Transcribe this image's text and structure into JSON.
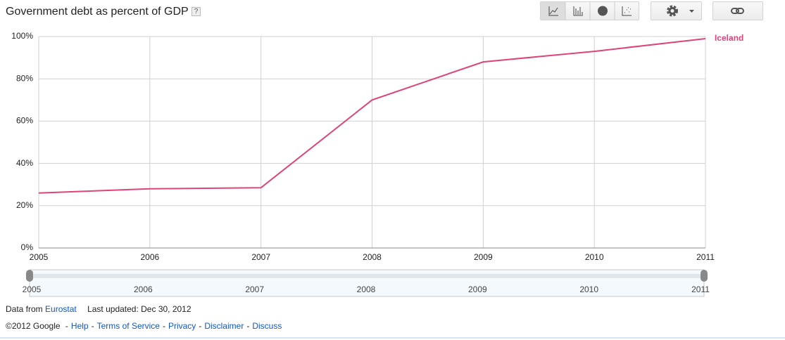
{
  "chart_data": {
    "type": "line",
    "title": "Government debt as percent of GDP",
    "x": [
      2005,
      2006,
      2007,
      2008,
      2009,
      2010,
      2011
    ],
    "xlim": [
      2005,
      2011
    ],
    "xticks": [
      2005,
      2006,
      2007,
      2008,
      2009,
      2010,
      2011
    ],
    "ylim": [
      0,
      100
    ],
    "yticks": [
      {
        "value": 0,
        "label": "0%"
      },
      {
        "value": 20,
        "label": "20%"
      },
      {
        "value": 40,
        "label": "40%"
      },
      {
        "value": 60,
        "label": "60%"
      },
      {
        "value": 80,
        "label": "80%"
      },
      {
        "value": 100,
        "label": "100%"
      }
    ],
    "grid": true,
    "series": [
      {
        "name": "Iceland",
        "color": "#dd4477",
        "values": [
          26,
          28,
          28.5,
          70,
          88,
          93,
          99
        ]
      }
    ]
  },
  "help_icon": "?",
  "timeline": {
    "ticks": [
      2005,
      2006,
      2007,
      2008,
      2009,
      2010,
      2011
    ]
  },
  "footer": {
    "source_prefix": "Data from",
    "source": "Eurostat",
    "updated": "Last updated: Dec 30, 2012",
    "copyright": "©2012 Google",
    "separator": "-",
    "links": [
      "Help",
      "Terms of Service",
      "Privacy",
      "Disclaimer",
      "Discuss"
    ]
  }
}
